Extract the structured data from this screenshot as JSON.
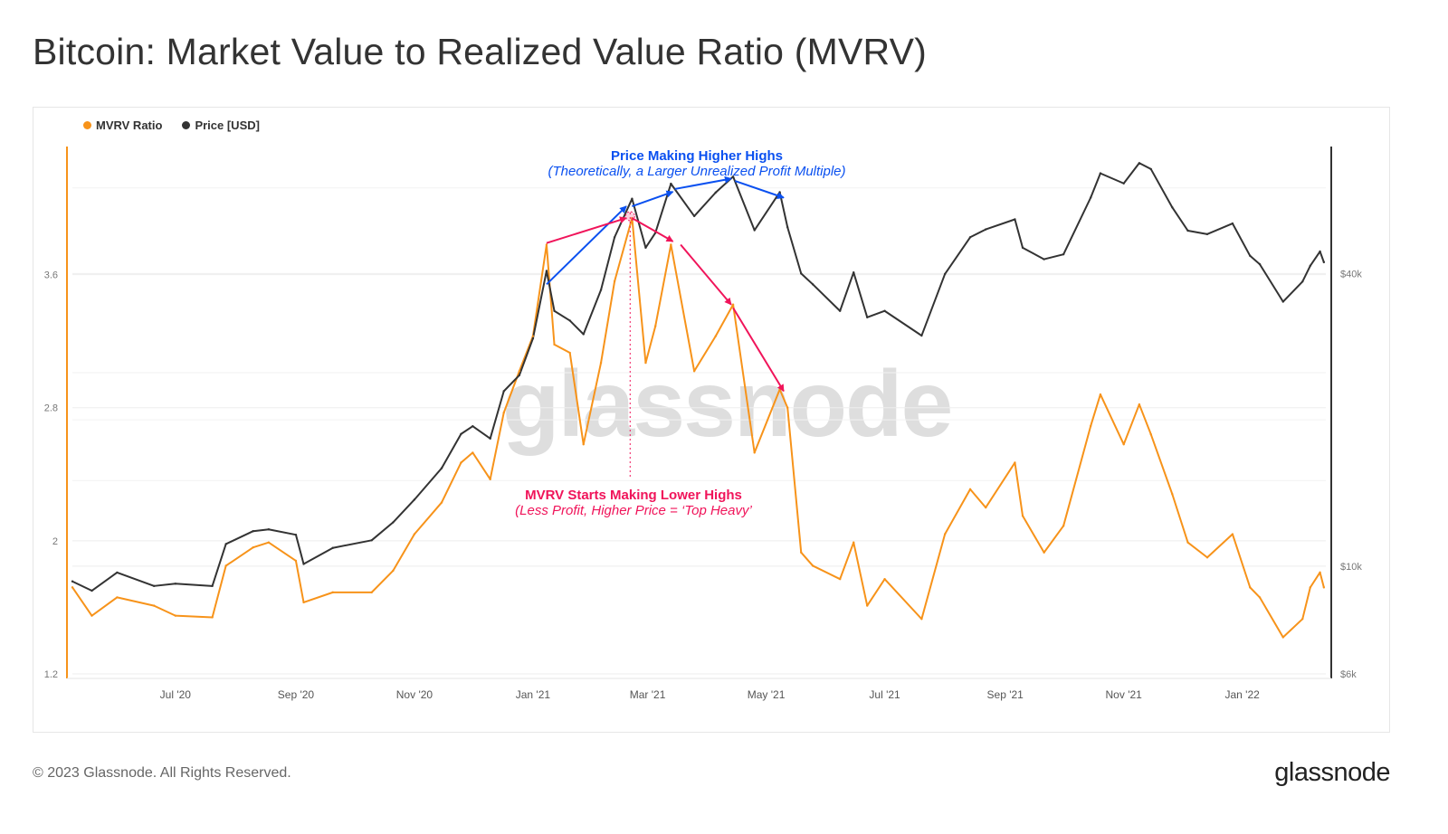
{
  "title": "Bitcoin: Market Value to Realized Value Ratio (MVRV)",
  "footer": "© 2023 Glassnode. All Rights Reserved.",
  "logo_text": "glassnode",
  "watermark": "glassnode",
  "colors": {
    "mvrv": "#f7931a",
    "price": "#333333",
    "blue_annotation": "#0a50f0",
    "pink_annotation": "#f0145a"
  },
  "chart_data": {
    "type": "line",
    "title": "Bitcoin: Market Value to Realized Value Ratio (MVRV)",
    "legend": [
      "MVRV Ratio",
      "Price [USD]"
    ],
    "legend_placement": "top-left",
    "grid": true,
    "x_ticks": [
      {
        "date": "2020-07-01",
        "label": "Jul '20"
      },
      {
        "date": "2020-09-01",
        "label": "Sep '20"
      },
      {
        "date": "2020-11-01",
        "label": "Nov '20"
      },
      {
        "date": "2021-01-01",
        "label": "Jan '21"
      },
      {
        "date": "2021-03-01",
        "label": "Mar '21"
      },
      {
        "date": "2021-05-01",
        "label": "May '21"
      },
      {
        "date": "2021-07-01",
        "label": "Jul '21"
      },
      {
        "date": "2021-09-01",
        "label": "Sep '21"
      },
      {
        "date": "2021-11-01",
        "label": "Nov '21"
      },
      {
        "date": "2022-01-01",
        "label": "Jan '22"
      }
    ],
    "xlim": [
      "2020-05-09",
      "2022-02-13"
    ],
    "y_left": {
      "scale": "linear",
      "range": [
        1.2,
        4.37
      ],
      "ticks": [
        {
          "v": 1.2,
          "label": "1.2"
        },
        {
          "v": 2,
          "label": "2"
        },
        {
          "v": 2.8,
          "label": "2.8"
        },
        {
          "v": 3.6,
          "label": "3.6"
        }
      ]
    },
    "y_right": {
      "scale": "log",
      "range": [
        6000,
        73000
      ],
      "ticks": [
        {
          "v": 6000,
          "label": "$6k"
        },
        {
          "v": 10000,
          "label": "$10k"
        },
        {
          "v": 40000,
          "label": "$40k"
        }
      ]
    },
    "x": [
      "2020-05-09",
      "2020-05-19",
      "2020-06-01",
      "2020-06-20",
      "2020-07-01",
      "2020-07-20",
      "2020-07-27",
      "2020-08-10",
      "2020-08-18",
      "2020-09-01",
      "2020-09-05",
      "2020-09-20",
      "2020-10-10",
      "2020-10-21",
      "2020-11-01",
      "2020-11-15",
      "2020-11-25",
      "2020-12-01",
      "2020-12-10",
      "2020-12-17",
      "2020-12-25",
      "2021-01-01",
      "2021-01-08",
      "2021-01-12",
      "2021-01-20",
      "2021-01-27",
      "2021-02-05",
      "2021-02-12",
      "2021-02-21",
      "2021-02-28",
      "2021-03-05",
      "2021-03-13",
      "2021-03-25",
      "2021-04-05",
      "2021-04-14",
      "2021-04-25",
      "2021-05-08",
      "2021-05-12",
      "2021-05-19",
      "2021-05-25",
      "2021-06-08",
      "2021-06-15",
      "2021-06-22",
      "2021-07-01",
      "2021-07-20",
      "2021-08-01",
      "2021-08-14",
      "2021-08-22",
      "2021-09-06",
      "2021-09-10",
      "2021-09-21",
      "2021-10-01",
      "2021-10-15",
      "2021-10-20",
      "2021-11-01",
      "2021-11-09",
      "2021-11-15",
      "2021-11-26",
      "2021-12-04",
      "2021-12-14",
      "2021-12-27",
      "2022-01-05",
      "2022-01-10",
      "2022-01-22",
      "2022-02-01",
      "2022-02-05",
      "2022-02-10",
      "2022-02-12"
    ],
    "series": [
      {
        "name": "MVRV Ratio",
        "axis": "left",
        "values": [
          1.72,
          1.55,
          1.66,
          1.61,
          1.55,
          1.54,
          1.85,
          1.96,
          1.99,
          1.88,
          1.63,
          1.69,
          1.69,
          1.82,
          2.04,
          2.23,
          2.47,
          2.53,
          2.37,
          2.77,
          3.02,
          3.23,
          3.78,
          3.18,
          3.13,
          2.58,
          3.07,
          3.56,
          3.94,
          3.07,
          3.29,
          3.78,
          3.02,
          3.23,
          3.42,
          2.53,
          2.91,
          2.8,
          1.93,
          1.85,
          1.77,
          1.99,
          1.61,
          1.77,
          1.53,
          2.04,
          2.31,
          2.2,
          2.47,
          2.15,
          1.93,
          2.09,
          2.69,
          2.88,
          2.58,
          2.82,
          2.64,
          2.28,
          1.99,
          1.9,
          2.04,
          1.72,
          1.66,
          1.42,
          1.53,
          1.72,
          1.81,
          1.72
        ]
      },
      {
        "name": "Price [USD]",
        "axis": "right",
        "values": [
          9300,
          8900,
          9700,
          9100,
          9200,
          9100,
          11100,
          11800,
          11900,
          11600,
          10100,
          10900,
          11300,
          12300,
          13700,
          15900,
          18700,
          19400,
          18300,
          22900,
          24700,
          29400,
          40500,
          33500,
          32000,
          30000,
          37000,
          47500,
          57000,
          45200,
          48500,
          61200,
          52500,
          58700,
          63300,
          49100,
          58800,
          49800,
          40000,
          38000,
          33500,
          40200,
          32500,
          33500,
          29800,
          39900,
          47500,
          49300,
          51700,
          45200,
          42800,
          43800,
          57300,
          64300,
          61300,
          67500,
          65600,
          54700,
          49000,
          48200,
          50700,
          43500,
          41800,
          35000,
          38500,
          41500,
          44400,
          42200
        ]
      }
    ],
    "annotations": [
      {
        "title": "Price Making Higher Highs",
        "subtitle": "(Theoretically, a Larger Unrealized Profit Multiple)",
        "color": "blue",
        "arrows": [
          {
            "axis": "right",
            "from": [
              "2021-01-08",
              38000
            ],
            "to": [
              "2021-02-18",
              55000
            ]
          },
          {
            "axis": "right",
            "from": [
              "2021-02-21",
              55000
            ],
            "to": [
              "2021-03-14",
              58900
            ]
          },
          {
            "axis": "right",
            "from": [
              "2021-03-15",
              59700
            ],
            "to": [
              "2021-04-13",
              62700
            ]
          },
          {
            "axis": "right",
            "from": [
              "2021-04-15",
              62000
            ],
            "to": [
              "2021-05-10",
              57300
            ]
          }
        ]
      },
      {
        "title": "MVRV Starts Making Lower Highs",
        "subtitle": "(Less Profit, Higher Price = ‘Top Heavy’",
        "color": "pink",
        "marker_date": "2021-02-20",
        "arrows": [
          {
            "axis": "left",
            "from": [
              "2021-01-08",
              3.79
            ],
            "to": [
              "2021-02-18",
              3.94
            ]
          },
          {
            "axis": "left",
            "from": [
              "2021-02-21",
              3.94
            ],
            "to": [
              "2021-03-14",
              3.8
            ]
          },
          {
            "axis": "left",
            "from": [
              "2021-03-18",
              3.78
            ],
            "to": [
              "2021-04-13",
              3.42
            ]
          },
          {
            "axis": "left",
            "from": [
              "2021-04-14",
              3.4
            ],
            "to": [
              "2021-05-10",
              2.9
            ]
          }
        ]
      }
    ]
  }
}
